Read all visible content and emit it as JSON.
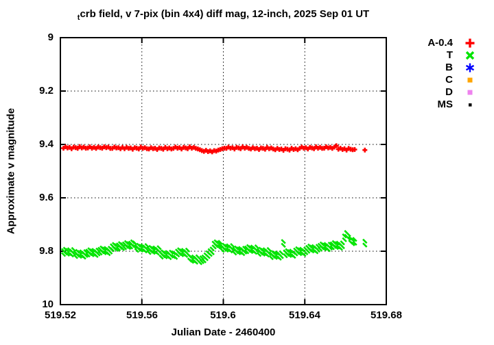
{
  "title": {
    "sub": "t",
    "main": "crb field, v 7-pix (bin 4x4) diff mag, 12-inch, 2025 Sep 01 UT"
  },
  "x_axis": {
    "label": "Julian Date - 2460400",
    "ticks": [
      "519.52",
      "519.56",
      "519.6",
      "519.64",
      "519.68"
    ]
  },
  "y_axis": {
    "label": "Approximate v magnitude",
    "ticks": [
      "9",
      "9.2",
      "9.4",
      "9.6",
      "9.8",
      "10"
    ]
  },
  "legend": {
    "items": [
      {
        "label": "A-0.4",
        "marker": "plus",
        "color": "#ff0000"
      },
      {
        "label": "T",
        "marker": "xcross",
        "color": "#00e400"
      },
      {
        "label": "B",
        "marker": "asterisk",
        "color": "#0000ff"
      },
      {
        "label": "C",
        "marker": "square",
        "color": "#ffa500"
      },
      {
        "label": "D",
        "marker": "square",
        "color": "#ee82ee"
      },
      {
        "label": "MS",
        "marker": "dot",
        "color": "#000000"
      }
    ]
  },
  "chart_data": {
    "type": "scatter",
    "title": "tcrb field, v 7-pix (bin 4x4) diff mag, 12-inch, 2025 Sep 01 UT",
    "xlabel": "Julian Date - 2460400",
    "ylabel": "Approximate v magnitude",
    "xlim": [
      519.52,
      519.68
    ],
    "ylim": [
      10,
      9
    ],
    "y_inverted": true,
    "grid": true,
    "legend_position": "outside-right-top",
    "x_ticks": [
      519.52,
      519.56,
      519.6,
      519.64,
      519.68
    ],
    "y_ticks": [
      9,
      9.2,
      9.4,
      9.6,
      9.8,
      10
    ],
    "series": [
      {
        "name": "A-0.4",
        "marker": "plus",
        "color": "#ff0000",
        "x_start": 519.5215,
        "x_step": 0.001,
        "mags": [
          9.414,
          9.409,
          9.413,
          9.411,
          9.416,
          9.41,
          9.412,
          9.415,
          9.408,
          9.413,
          9.41,
          9.414,
          9.413,
          9.409,
          9.414,
          9.411,
          9.415,
          9.41,
          9.412,
          9.414,
          9.409,
          9.412,
          9.41,
          9.415,
          9.415,
          9.41,
          9.413,
          9.412,
          9.416,
          9.411,
          9.416,
          9.411,
          9.415,
          9.413,
          9.418,
          9.412,
          9.414,
          9.417,
          9.41,
          9.415,
          9.412,
          9.416,
          9.417,
          9.412,
          9.416,
          9.414,
          9.419,
          9.413,
          9.415,
          9.418,
          9.411,
          9.416,
          9.413,
          9.417,
          9.415,
          9.41,
          9.414,
          9.412,
          9.417,
          9.411,
          9.413,
          9.416,
          9.409,
          9.414,
          9.411,
          9.415,
          9.417,
          9.42,
          9.423,
          9.426,
          9.422,
          9.427,
          9.424,
          9.428,
          9.423,
          9.425,
          9.421,
          9.419,
          9.416,
          9.414,
          9.415,
          9.41,
          9.414,
          9.412,
          9.417,
          9.411,
          9.413,
          9.416,
          9.409,
          9.414,
          9.411,
          9.415,
          9.417,
          9.412,
          9.416,
          9.414,
          9.419,
          9.413,
          9.415,
          9.418,
          9.411,
          9.416,
          9.413,
          9.417,
          9.42,
          9.415,
          9.419,
          9.417,
          9.422,
          9.416,
          9.418,
          9.421,
          9.414,
          9.419,
          9.416,
          9.42,
          9.415,
          9.41,
          9.414,
          9.412,
          9.417,
          9.411,
          9.413,
          9.416,
          9.409,
          9.414,
          9.411,
          9.415,
          9.414,
          9.409,
          9.413,
          9.411,
          9.415,
          9.41,
          9.405,
          9.418,
          9.414,
          9.419,
          9.416,
          9.421,
          9.415,
          9.418,
          9.42,
          9.419
        ],
        "extra_points": [
          [
            519.6695,
            9.421
          ]
        ]
      },
      {
        "name": "T",
        "marker": "xcross",
        "color": "#00e400",
        "x_start": 519.5215,
        "x_step": 0.001,
        "mags": [
          9.812,
          9.807,
          9.811,
          9.809,
          9.814,
          9.808,
          9.82,
          9.815,
          9.819,
          9.817,
          9.822,
          9.816,
          9.814,
          9.809,
          9.813,
          9.811,
          9.816,
          9.81,
          9.807,
          9.802,
          9.806,
          9.804,
          9.809,
          9.803,
          9.794,
          9.789,
          9.793,
          9.791,
          9.786,
          9.79,
          9.787,
          9.782,
          9.786,
          9.784,
          9.779,
          9.783,
          9.797,
          9.792,
          9.796,
          9.794,
          9.799,
          9.793,
          9.805,
          9.8,
          9.804,
          9.802,
          9.807,
          9.801,
          9.822,
          9.817,
          9.821,
          9.819,
          9.824,
          9.818,
          9.82,
          9.823,
          9.814,
          9.809,
          9.813,
          9.811,
          9.816,
          9.81,
          9.833,
          9.838,
          9.836,
          9.841,
          9.835,
          9.843,
          9.839,
          9.836,
          9.828,
          9.82,
          9.812,
          9.806,
          9.784,
          9.779,
          9.783,
          9.781,
          9.797,
          9.792,
          9.796,
          9.794,
          9.799,
          9.793,
          9.807,
          9.802,
          9.806,
          9.804,
          9.809,
          9.803,
          9.802,
          9.797,
          9.801,
          9.799,
          9.804,
          9.798,
          9.812,
          9.807,
          9.811,
          9.809,
          9.814,
          9.808,
          9.824,
          9.819,
          9.823,
          9.821,
          9.826,
          9.82,
          9.778,
          9.817,
          9.812,
          9.816,
          9.814,
          9.819,
          9.81,
          9.805,
          9.809,
          9.807,
          9.812,
          9.806,
          9.8,
          9.795,
          9.799,
          9.797,
          9.802,
          9.796,
          9.792,
          9.787,
          9.791,
          9.789,
          9.794,
          9.788,
          9.787,
          9.782,
          9.786,
          9.784,
          9.789,
          9.783,
          9.757,
          9.744,
          9.752,
          9.766,
          9.772,
          9.77
        ],
        "extra_points": [
          [
            519.6695,
            9.777
          ]
        ]
      },
      {
        "name": "B",
        "marker": "asterisk",
        "color": "#0000ff",
        "mags": []
      },
      {
        "name": "C",
        "marker": "square",
        "color": "#ffa500",
        "mags": []
      },
      {
        "name": "D",
        "marker": "square",
        "color": "#ee82ee",
        "mags": []
      },
      {
        "name": "MS",
        "marker": "dot",
        "color": "#000000",
        "mags": []
      }
    ]
  }
}
